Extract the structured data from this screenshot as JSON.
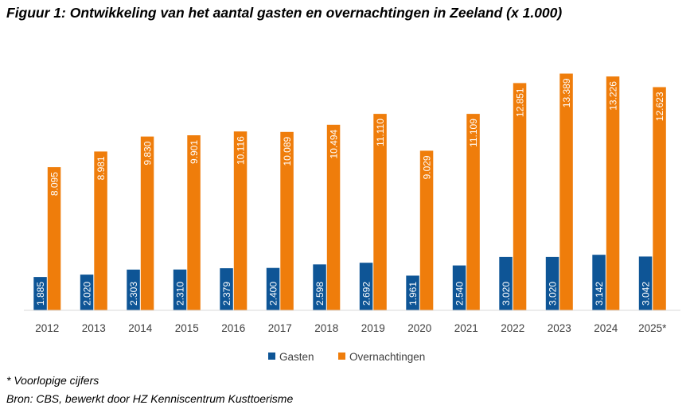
{
  "title": "Figuur 1: Ontwikkeling van het aantal gasten en overnachtingen in Zeeland (x 1.000)",
  "footnote": "* Voorlopige cijfers",
  "source": "Bron: CBS, bewerkt door HZ Kenniscentrum Kusttoerisme",
  "colors": {
    "gasten": "#0e5596",
    "overnachtingen": "#ef7d0b"
  },
  "chart_data": {
    "type": "bar",
    "categories": [
      "2012",
      "2013",
      "2014",
      "2015",
      "2016",
      "2017",
      "2018",
      "2019",
      "2020",
      "2021",
      "2022",
      "2023",
      "2024",
      "2025*"
    ],
    "series": [
      {
        "name": "Gasten",
        "values": [
          1885,
          2020,
          2303,
          2310,
          2379,
          2400,
          2598,
          2692,
          1961,
          2540,
          3020,
          3020,
          3142,
          3042
        ],
        "labels": [
          "1.885",
          "2.020",
          "2.303",
          "2.310",
          "2.379",
          "2.400",
          "2.598",
          "2.692",
          "1.961",
          "2.540",
          "3.020",
          "3.020",
          "3.142",
          "3.042"
        ]
      },
      {
        "name": "Overnachtingen",
        "values": [
          8095,
          8981,
          9830,
          9901,
          10116,
          10089,
          10494,
          11110,
          9029,
          11109,
          12851,
          13389,
          13226,
          12623
        ],
        "labels": [
          "8.095",
          "8.981",
          "9.830",
          "9.901",
          "10.116",
          "10.089",
          "10.494",
          "11.110",
          "9.029",
          "11.109",
          "12.851",
          "13.389",
          "13.226",
          "12.623"
        ]
      }
    ],
    "ylim": [
      0,
      13500
    ],
    "grid": false,
    "legend": "bottom"
  }
}
